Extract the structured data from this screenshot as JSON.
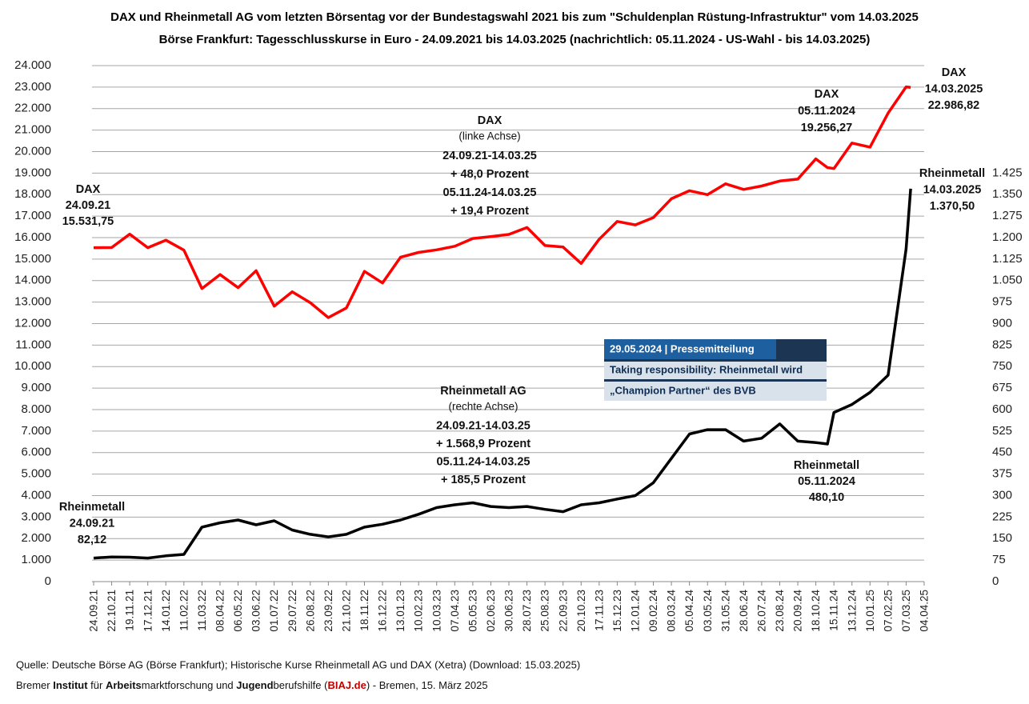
{
  "chart_data": {
    "type": "line",
    "title": "DAX und Rheinmetall AG vom letzten Börsentag vor der Bundestagswahl 2021 bis zum \"Schuldenplan Rüstung-Infrastruktur\" vom 14.03.2025",
    "subtitle": "Börse Frankfurt:  Tagesschlusskurse in Euro - 24.09.2021 bis 14.03.2025 (nachrichtlich: 05.11.2024 - US-Wahl - bis 14.03.2025)",
    "x": [
      "24.09.21",
      "22.10.21",
      "19.11.21",
      "17.12.21",
      "14.01.22",
      "11.02.22",
      "11.03.22",
      "08.04.22",
      "06.05.22",
      "03.06.22",
      "01.07.22",
      "29.07.22",
      "26.08.22",
      "23.09.22",
      "21.10.22",
      "18.11.22",
      "16.12.22",
      "13.01.23",
      "10.02.23",
      "10.03.23",
      "07.04.23",
      "05.05.23",
      "02.06.23",
      "30.06.23",
      "28.07.23",
      "25.08.23",
      "22.09.23",
      "20.10.23",
      "17.11.23",
      "15.12.23",
      "12.01.24",
      "09.02.24",
      "08.03.24",
      "05.04.24",
      "03.05.24",
      "31.05.24",
      "28.06.24",
      "26.07.24",
      "23.08.24",
      "20.09.24",
      "18.10.24",
      "05.11.24",
      "15.11.24",
      "13.12.24",
      "10.01.25",
      "07.02.25",
      "07.03.25",
      "14.03.25"
    ],
    "series": [
      {
        "name": "DAX",
        "color": "#ff0000",
        "axis": "y",
        "values": [
          15531.75,
          15540,
          16160,
          15530,
          15880,
          15420,
          13630,
          14280,
          13670,
          14460,
          12810,
          13480,
          12970,
          12280,
          12730,
          14430,
          13890,
          15090,
          15310,
          15430,
          15600,
          15960,
          16050,
          16150,
          16470,
          15630,
          15560,
          14800,
          15920,
          16750,
          16590,
          16930,
          17810,
          18180,
          18000,
          18500,
          18240,
          18400,
          18630,
          18720,
          19660,
          19256.27,
          19210,
          20400,
          20210,
          21790,
          23010,
          22986.82
        ]
      },
      {
        "name": "Rheinmetall AG",
        "color": "#000000",
        "axis": "y2",
        "values": [
          82.12,
          86,
          85,
          82,
          90,
          95,
          190,
          205,
          215,
          198,
          212,
          180,
          165,
          156,
          165,
          190,
          200,
          215,
          235,
          258,
          268,
          275,
          262,
          258,
          262,
          252,
          244,
          268,
          275,
          288,
          300,
          345,
          430,
          515,
          530,
          530,
          490,
          500,
          550,
          490,
          485,
          480.1,
          590,
          618,
          660,
          720,
          1160,
          1370.5
        ]
      }
    ],
    "xlim": [
      "24.09.21",
      "04.04.25"
    ],
    "xticks": [
      "24.09.21",
      "22.10.21",
      "19.11.21",
      "17.12.21",
      "14.01.22",
      "11.02.22",
      "11.03.22",
      "08.04.22",
      "06.05.22",
      "03.06.22",
      "01.07.22",
      "29.07.22",
      "26.08.22",
      "23.09.22",
      "21.10.22",
      "18.11.22",
      "16.12.22",
      "13.01.23",
      "10.02.23",
      "10.03.23",
      "07.04.23",
      "05.05.23",
      "02.06.23",
      "30.06.23",
      "28.07.23",
      "25.08.23",
      "22.09.23",
      "20.10.23",
      "17.11.23",
      "15.12.23",
      "12.01.24",
      "09.02.24",
      "08.03.24",
      "05.04.24",
      "03.05.24",
      "31.05.24",
      "28.06.24",
      "26.07.24",
      "23.08.24",
      "20.09.24",
      "18.10.24",
      "15.11.24",
      "13.12.24",
      "10.01.25",
      "07.02.25",
      "07.03.25",
      "04.04.25"
    ],
    "ylim": [
      0,
      24000
    ],
    "yticks": [
      0,
      {
        "value": 1000,
        "label": "1.000"
      },
      {
        "value": 2000,
        "label": "2.000"
      },
      {
        "value": 3000,
        "label": "3.000"
      },
      {
        "value": 4000,
        "label": "4.000"
      },
      {
        "value": 5000,
        "label": "5.000"
      },
      {
        "value": 6000,
        "label": "6.000"
      },
      {
        "value": 7000,
        "label": "7.000"
      },
      {
        "value": 8000,
        "label": "8.000"
      },
      {
        "value": 9000,
        "label": "9.000"
      },
      {
        "value": 10000,
        "label": "10.000"
      },
      {
        "value": 11000,
        "label": "11.000"
      },
      {
        "value": 12000,
        "label": "12.000"
      },
      {
        "value": 13000,
        "label": "13.000"
      },
      {
        "value": 14000,
        "label": "14.000"
      },
      {
        "value": 15000,
        "label": "15.000"
      },
      {
        "value": 16000,
        "label": "16.000"
      },
      {
        "value": 17000,
        "label": "17.000"
      },
      {
        "value": 18000,
        "label": "18.000"
      },
      {
        "value": 19000,
        "label": "19.000"
      },
      {
        "value": 20000,
        "label": "20.000"
      },
      {
        "value": 21000,
        "label": "21.000"
      },
      {
        "value": 22000,
        "label": "22.000"
      },
      {
        "value": 23000,
        "label": "23.000"
      },
      {
        "value": 24000,
        "label": "24.000"
      }
    ],
    "y2lim": [
      0,
      1800
    ],
    "y2ticks": [
      0,
      75,
      150,
      225,
      300,
      375,
      450,
      525,
      600,
      675,
      750,
      825,
      900,
      975,
      {
        "value": 1050,
        "label": "1.050"
      },
      {
        "value": 1125,
        "label": "1.125"
      },
      {
        "value": 1200,
        "label": "1.200"
      },
      {
        "value": 1275,
        "label": "1.275"
      },
      {
        "value": 1350,
        "label": "1.350"
      },
      {
        "value": 1425,
        "label": "1.425"
      }
    ],
    "grid": true,
    "annotations": [
      {
        "lines": [
          "DAX",
          "24.09.21",
          "15.531,75"
        ]
      },
      {
        "lines": [
          "(linke Achse)",
          "24.09.21-14.03.25",
          "+ 48,0 Prozent",
          "05.11.24-14.03.25",
          "+ 19,4 Prozent"
        ]
      },
      {
        "lines": [
          "DAX",
          "05.11.2024",
          "19.256,27"
        ]
      },
      {
        "lines": [
          "DAX",
          "14.03.2025",
          "22.986,82"
        ]
      },
      {
        "lines": [
          "(rechte Achse)",
          "24.09.21-14.03.25",
          "+ 1.568,9 Prozent",
          "05.11.24-14.03.25",
          "+ 185,5 Prozent"
        ]
      },
      {
        "lines": [
          "Rheinmetall",
          "24.09.21",
          "82,12"
        ]
      },
      {
        "lines": [
          "Rheinmetall",
          "05.11.2024",
          "480,10"
        ]
      },
      {
        "lines": [
          "Rheinmetall",
          "14.03.2025",
          "1.370,50"
        ]
      }
    ],
    "inset": [
      "29.05.2024 | Pressemitteilung",
      "Taking responsibility: Rheinmetall wird",
      "„Champion Partner“ des BVB"
    ],
    "source": "Quelle: Deutsche Börse AG (Börse Frankfurt); Historische Kurse Rheinmetall AG und DAX (Xetra) (Download: 15.03.2025)",
    "footer": [
      "Bremer ",
      "Institut",
      " für ",
      "Arbeits",
      "marktforschung und ",
      "Jugend",
      "berufshilfe (",
      "BIAJ.de",
      ") -  Bremen, 15. März 2025"
    ]
  }
}
